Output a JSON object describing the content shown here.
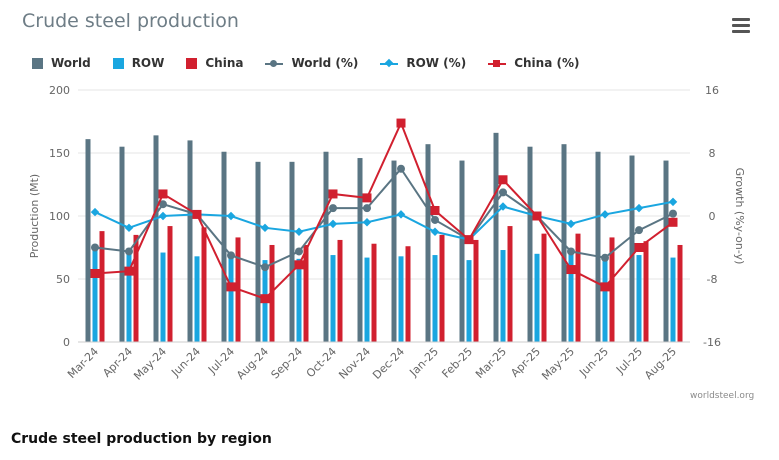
{
  "chart_title": "Crude steel production",
  "menu_icon": "hamburger-menu-icon",
  "credit": "worldsteel.org",
  "section_heading": "Crude steel production by region",
  "colors": {
    "world": "#5a7583",
    "row": "#1aa6e0",
    "china": "#d1202f",
    "grid": "#e6e6e6",
    "tick": "#666666"
  },
  "legend": [
    {
      "label": "World",
      "kind": "bar",
      "color": "#5a7583"
    },
    {
      "label": "ROW",
      "kind": "bar",
      "color": "#1aa6e0"
    },
    {
      "label": "China",
      "kind": "bar",
      "color": "#d1202f"
    },
    {
      "label": "World (%)",
      "kind": "line",
      "marker": "circle",
      "color": "#5a7583"
    },
    {
      "label": "ROW (%)",
      "kind": "line",
      "marker": "diamond",
      "color": "#1aa6e0"
    },
    {
      "label": "China (%)",
      "kind": "line",
      "marker": "square",
      "color": "#d1202f"
    }
  ],
  "chart_data": {
    "type": "bar",
    "title": "Crude steel production",
    "categories": [
      "Mar-24",
      "Apr-24",
      "May-24",
      "Jun-24",
      "Jul-24",
      "Aug-24",
      "Sep-24",
      "Oct-24",
      "Nov-24",
      "Dec-24",
      "Jan-25",
      "Feb-25",
      "Mar-25",
      "Apr-25",
      "May-25",
      "Jun-25",
      "Jul-25",
      "Aug-25"
    ],
    "ylabel": "Production (Mt)",
    "y2label": "Growth (%y-on-y)",
    "ylim": [
      0,
      200
    ],
    "yticks": [
      0,
      50,
      100,
      150,
      200
    ],
    "y2lim": [
      -16,
      16
    ],
    "y2ticks": [
      -16,
      -8,
      0,
      8,
      16
    ],
    "bar_series": [
      {
        "name": "World",
        "values": [
          161,
          155,
          164,
          160,
          151,
          143,
          143,
          151,
          146,
          144,
          157,
          144,
          166,
          155,
          157,
          151,
          148,
          144
        ]
      },
      {
        "name": "ROW",
        "values": [
          75,
          72,
          71,
          68,
          68,
          65,
          66,
          69,
          67,
          68,
          69,
          65,
          73,
          70,
          72,
          68,
          69,
          67
        ]
      },
      {
        "name": "China",
        "values": [
          88,
          85,
          92,
          91,
          83,
          77,
          77,
          81,
          78,
          76,
          85,
          81,
          92,
          86,
          86,
          83,
          80,
          77
        ]
      }
    ],
    "line_series": [
      {
        "name": "World (%)",
        "marker": "circle",
        "values": [
          -4,
          -4.5,
          1.5,
          0.2,
          -5,
          -6.5,
          -4.5,
          1,
          1,
          6,
          -0.5,
          -3,
          3,
          0,
          -4.5,
          -5.3,
          -1.8,
          0.3
        ]
      },
      {
        "name": "ROW (%)",
        "marker": "diamond",
        "values": [
          0.5,
          -1.5,
          0,
          0.2,
          0,
          -1.5,
          -2,
          -1,
          -0.8,
          0.2,
          -2,
          -3,
          1.2,
          0,
          -1,
          0.2,
          1,
          1.8
        ]
      },
      {
        "name": "China (%)",
        "marker": "square",
        "values": [
          -7.3,
          -7,
          2.8,
          0.2,
          -9,
          -10.5,
          -6.2,
          2.8,
          2.3,
          11.8,
          0.7,
          -3,
          4.6,
          0,
          -6.8,
          -9,
          -4,
          -0.8
        ]
      }
    ]
  }
}
